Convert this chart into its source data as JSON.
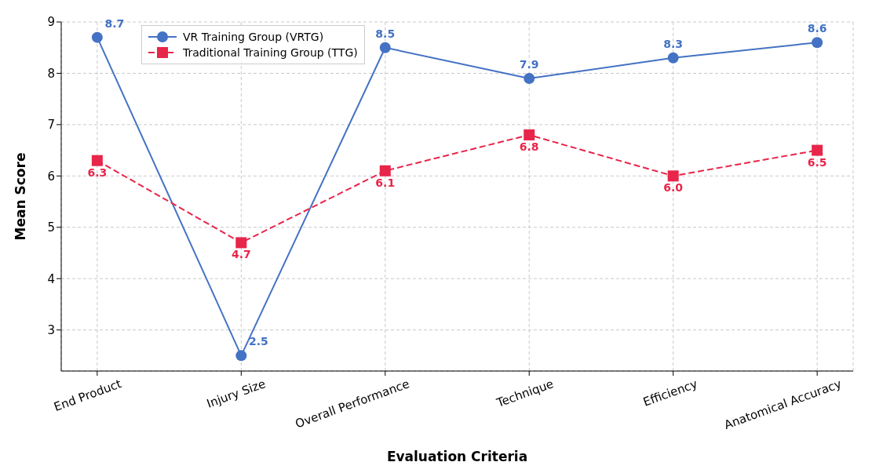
{
  "chart_data": {
    "type": "line",
    "xlabel": "Evaluation Criteria",
    "ylabel": "Mean Score",
    "categories": [
      "End Product",
      "Injury Size",
      "Overall Performance",
      "Technique",
      "Efficiency",
      "Anatomical Accuracy"
    ],
    "series": [
      {
        "name": "VR Training Group (VRTG)",
        "color": "#4472c4",
        "marker": "circle",
        "line_style": "solid",
        "values": [
          8.7,
          2.5,
          8.5,
          7.9,
          8.3,
          8.6
        ],
        "value_labels": [
          "8.7",
          "2.5",
          "8.5",
          "7.9",
          "8.3",
          "8.6"
        ]
      },
      {
        "name": "Traditional Training Group (TTG)",
        "color": "#e8254a",
        "marker": "square",
        "line_style": "dashed",
        "values": [
          6.3,
          4.7,
          6.1,
          6.8,
          6.0,
          6.5
        ],
        "value_labels": [
          "6.3",
          "4.7",
          "6.1",
          "6.8",
          "6.0",
          "6.5"
        ]
      }
    ],
    "ylim": [
      2.2,
      9
    ],
    "yticks": [
      3,
      4,
      5,
      6,
      7,
      8,
      9
    ],
    "grid": true,
    "legend": "top left"
  }
}
